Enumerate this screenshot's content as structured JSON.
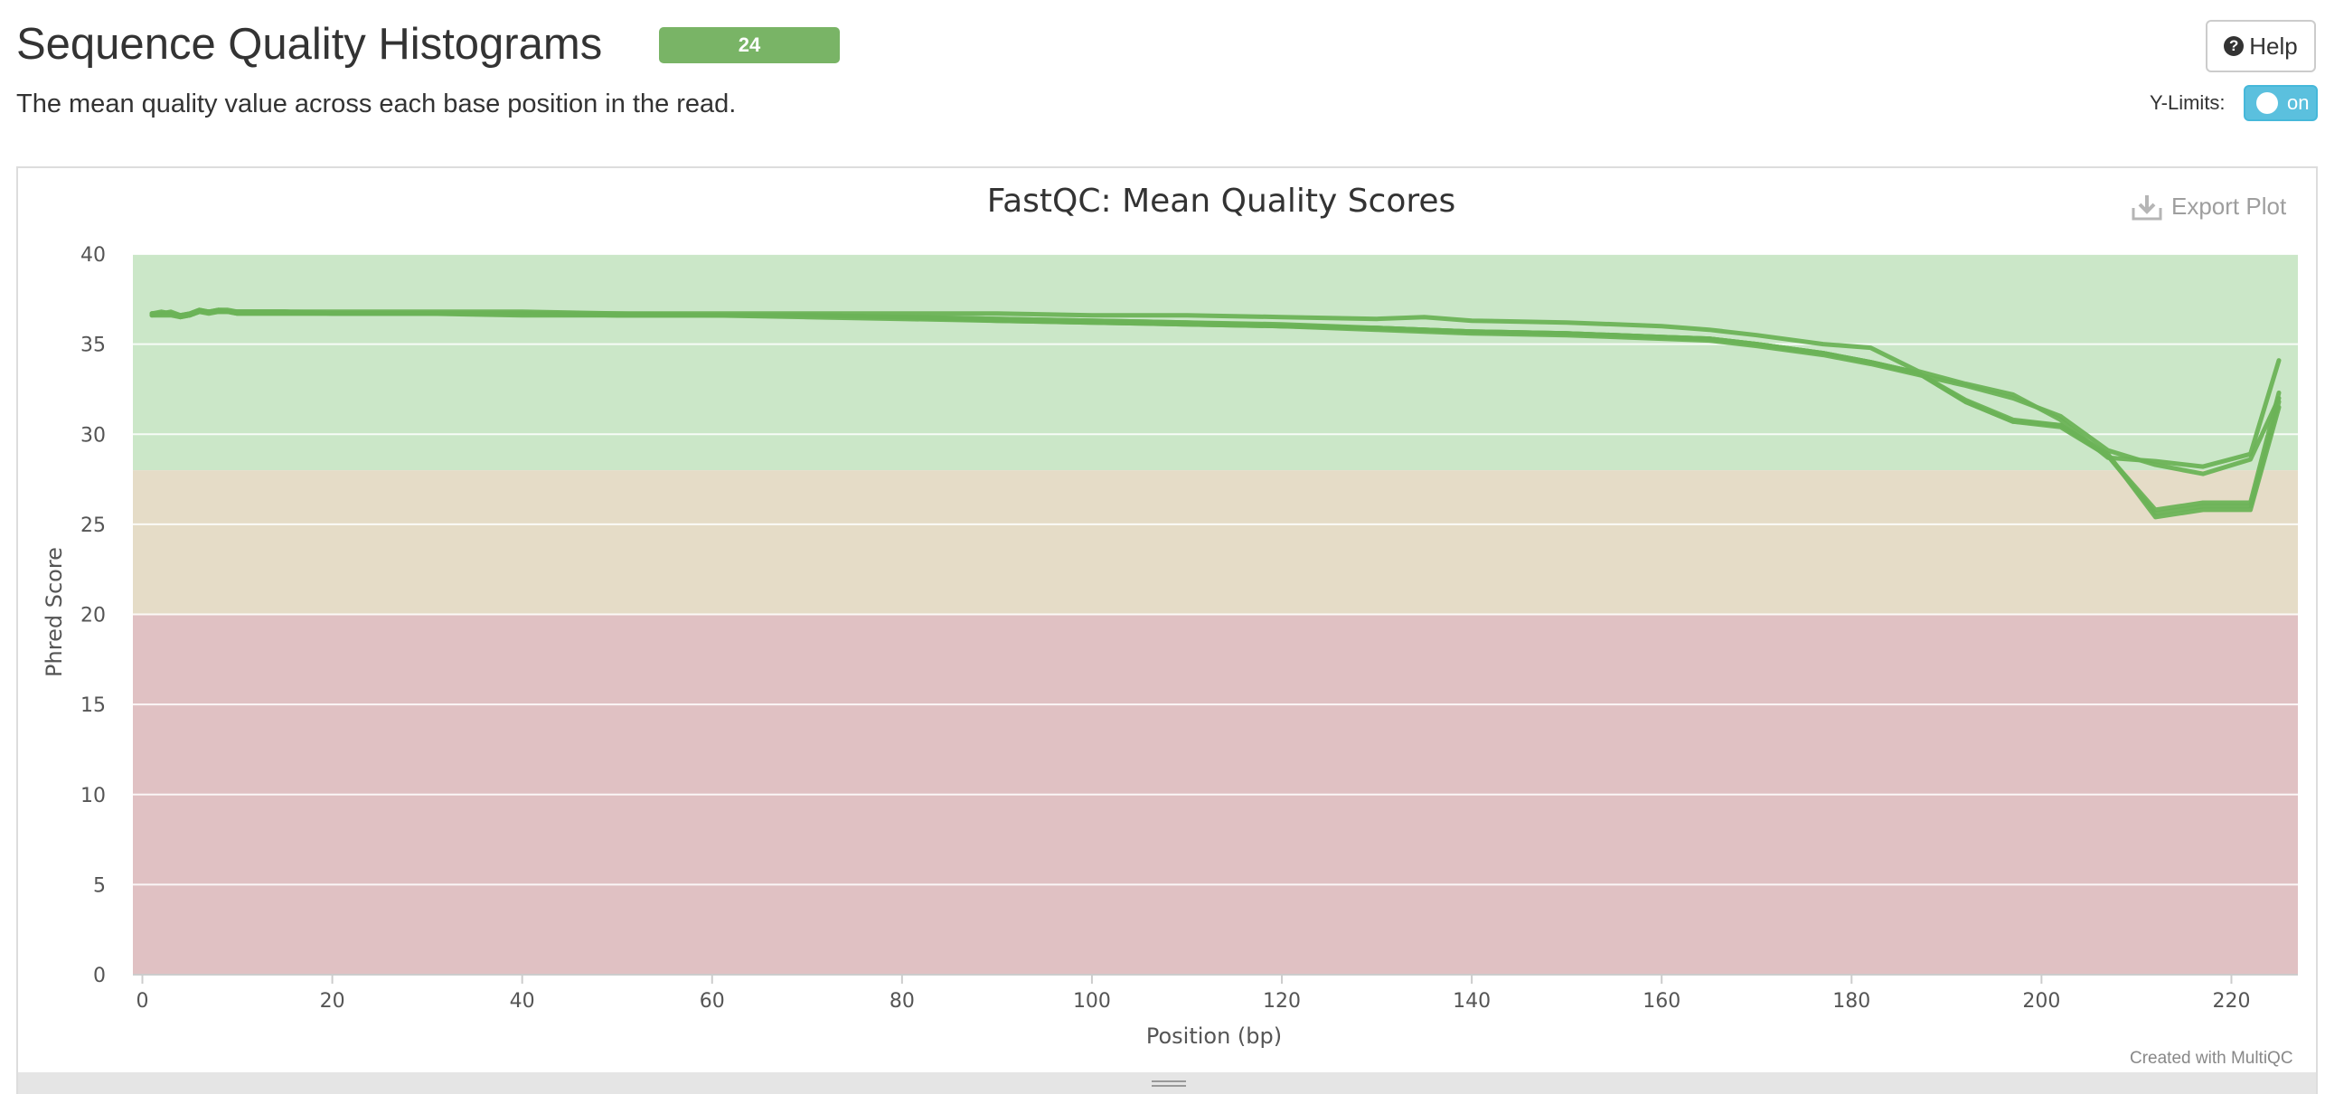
{
  "header": {
    "title": "Sequence Quality Histograms",
    "badge_count": "24",
    "description": "The mean quality value across each base position in the read."
  },
  "controls": {
    "help_label": "Help",
    "ylimits_label": "Y-Limits:",
    "ylimits_state": "on",
    "export_label": "Export Plot"
  },
  "footer": {
    "credit": "Created with MultiQC"
  },
  "colors": {
    "line": "#6cb357",
    "badge": "#79b466",
    "band_good": "#cbe7c8",
    "band_warn": "#e5dcc7",
    "band_fail": "#e0c1c3",
    "toggle": "#5bc0de"
  },
  "chart_data": {
    "type": "line",
    "title": "FastQC: Mean Quality Scores",
    "xlabel": "Position (bp)",
    "ylabel": "Phred Score",
    "xlim": [
      -1,
      227
    ],
    "ylim": [
      0,
      40
    ],
    "x_ticks": [
      0,
      20,
      40,
      60,
      80,
      100,
      120,
      140,
      160,
      180,
      200,
      220
    ],
    "y_ticks": [
      0,
      5,
      10,
      15,
      20,
      25,
      30,
      35,
      40
    ],
    "grid": true,
    "legend": "none",
    "bands": [
      {
        "from": 28,
        "to": 40,
        "quality": "good"
      },
      {
        "from": 20,
        "to": 28,
        "quality": "warn"
      },
      {
        "from": 0,
        "to": 20,
        "quality": "fail"
      }
    ],
    "series": [
      {
        "x": [
          1,
          2,
          3,
          4,
          5,
          6,
          7,
          8,
          9,
          10,
          15,
          20,
          30,
          40,
          50,
          60,
          70,
          80,
          90,
          100,
          110,
          120,
          130,
          135,
          140,
          150,
          160,
          165,
          170,
          177,
          182,
          187,
          192,
          197,
          202,
          207,
          212,
          217,
          222,
          225
        ],
        "y": [
          36.7,
          36.7,
          36.8,
          36.6,
          36.7,
          36.9,
          36.8,
          36.9,
          36.9,
          36.8,
          36.8,
          36.8,
          36.8,
          36.8,
          36.7,
          36.7,
          36.7,
          36.7,
          36.7,
          36.6,
          36.6,
          36.5,
          36.4,
          36.5,
          36.3,
          36.2,
          36.0,
          35.8,
          35.5,
          35.0,
          34.8,
          33.5,
          32.8,
          32.2,
          30.8,
          28.7,
          28.5,
          28.2,
          28.9,
          34.1
        ]
      },
      {
        "x": [
          1,
          2,
          3,
          4,
          5,
          6,
          7,
          8,
          9,
          10,
          15,
          20,
          30,
          40,
          50,
          60,
          70,
          80,
          90,
          100,
          110,
          120,
          130,
          135,
          140,
          150,
          160,
          165,
          170,
          177,
          182,
          187,
          192,
          197,
          202,
          207,
          212,
          217,
          222,
          225
        ],
        "y": [
          36.6,
          36.7,
          36.7,
          36.5,
          36.6,
          36.8,
          36.8,
          36.8,
          36.8,
          36.7,
          36.7,
          36.7,
          36.7,
          36.7,
          36.6,
          36.6,
          36.6,
          36.5,
          36.3,
          36.2,
          36.1,
          36.0,
          35.8,
          35.7,
          35.6,
          35.5,
          35.3,
          35.2,
          34.9,
          34.4,
          33.9,
          33.3,
          32.7,
          32.0,
          31.0,
          29.1,
          28.3,
          27.8,
          28.6,
          32.0
        ]
      },
      {
        "x": [
          1,
          2,
          3,
          4,
          5,
          6,
          7,
          8,
          9,
          10,
          15,
          20,
          30,
          40,
          50,
          60,
          70,
          80,
          90,
          100,
          110,
          120,
          130,
          135,
          140,
          150,
          160,
          165,
          170,
          177,
          182,
          187,
          192,
          197,
          202,
          207,
          212,
          217,
          222,
          225
        ],
        "y": [
          36.7,
          36.8,
          36.7,
          36.6,
          36.7,
          36.9,
          36.8,
          36.9,
          36.8,
          36.8,
          36.8,
          36.7,
          36.7,
          36.7,
          36.7,
          36.6,
          36.6,
          36.5,
          36.4,
          36.3,
          36.2,
          36.1,
          35.9,
          35.8,
          35.7,
          35.6,
          35.4,
          35.3,
          35.0,
          34.5,
          34.0,
          33.4,
          31.8,
          30.7,
          30.4,
          28.8,
          25.6,
          26.0,
          26.0,
          31.8
        ]
      },
      {
        "x": [
          1,
          2,
          3,
          4,
          5,
          6,
          7,
          8,
          9,
          10,
          15,
          20,
          30,
          40,
          50,
          60,
          70,
          80,
          90,
          100,
          110,
          120,
          130,
          135,
          140,
          150,
          160,
          165,
          170,
          177,
          182,
          187,
          192,
          197,
          202,
          207,
          212,
          217,
          222,
          225
        ],
        "y": [
          36.6,
          36.6,
          36.6,
          36.5,
          36.6,
          36.8,
          36.7,
          36.8,
          36.8,
          36.7,
          36.7,
          36.7,
          36.7,
          36.6,
          36.6,
          36.6,
          36.5,
          36.4,
          36.3,
          36.2,
          36.1,
          36.0,
          35.9,
          35.8,
          35.7,
          35.6,
          35.4,
          35.3,
          35.0,
          34.5,
          34.0,
          33.4,
          31.9,
          30.8,
          30.5,
          28.9,
          25.4,
          25.8,
          25.8,
          31.5
        ]
      },
      {
        "x": [
          1,
          2,
          3,
          4,
          5,
          6,
          7,
          8,
          9,
          10,
          15,
          20,
          30,
          40,
          50,
          60,
          70,
          80,
          90,
          100,
          110,
          120,
          130,
          135,
          140,
          150,
          160,
          165,
          170,
          177,
          182,
          187,
          192,
          197,
          202,
          207,
          212,
          217,
          222,
          225
        ],
        "y": [
          36.7,
          36.7,
          36.7,
          36.6,
          36.6,
          36.8,
          36.8,
          36.8,
          36.8,
          36.8,
          36.8,
          36.7,
          36.7,
          36.7,
          36.6,
          36.6,
          36.6,
          36.5,
          36.4,
          36.3,
          36.2,
          36.0,
          35.9,
          35.8,
          35.7,
          35.6,
          35.4,
          35.3,
          35.0,
          34.5,
          34.0,
          33.4,
          31.8,
          30.7,
          30.5,
          28.8,
          25.8,
          26.2,
          26.2,
          32.3
        ]
      }
    ]
  }
}
